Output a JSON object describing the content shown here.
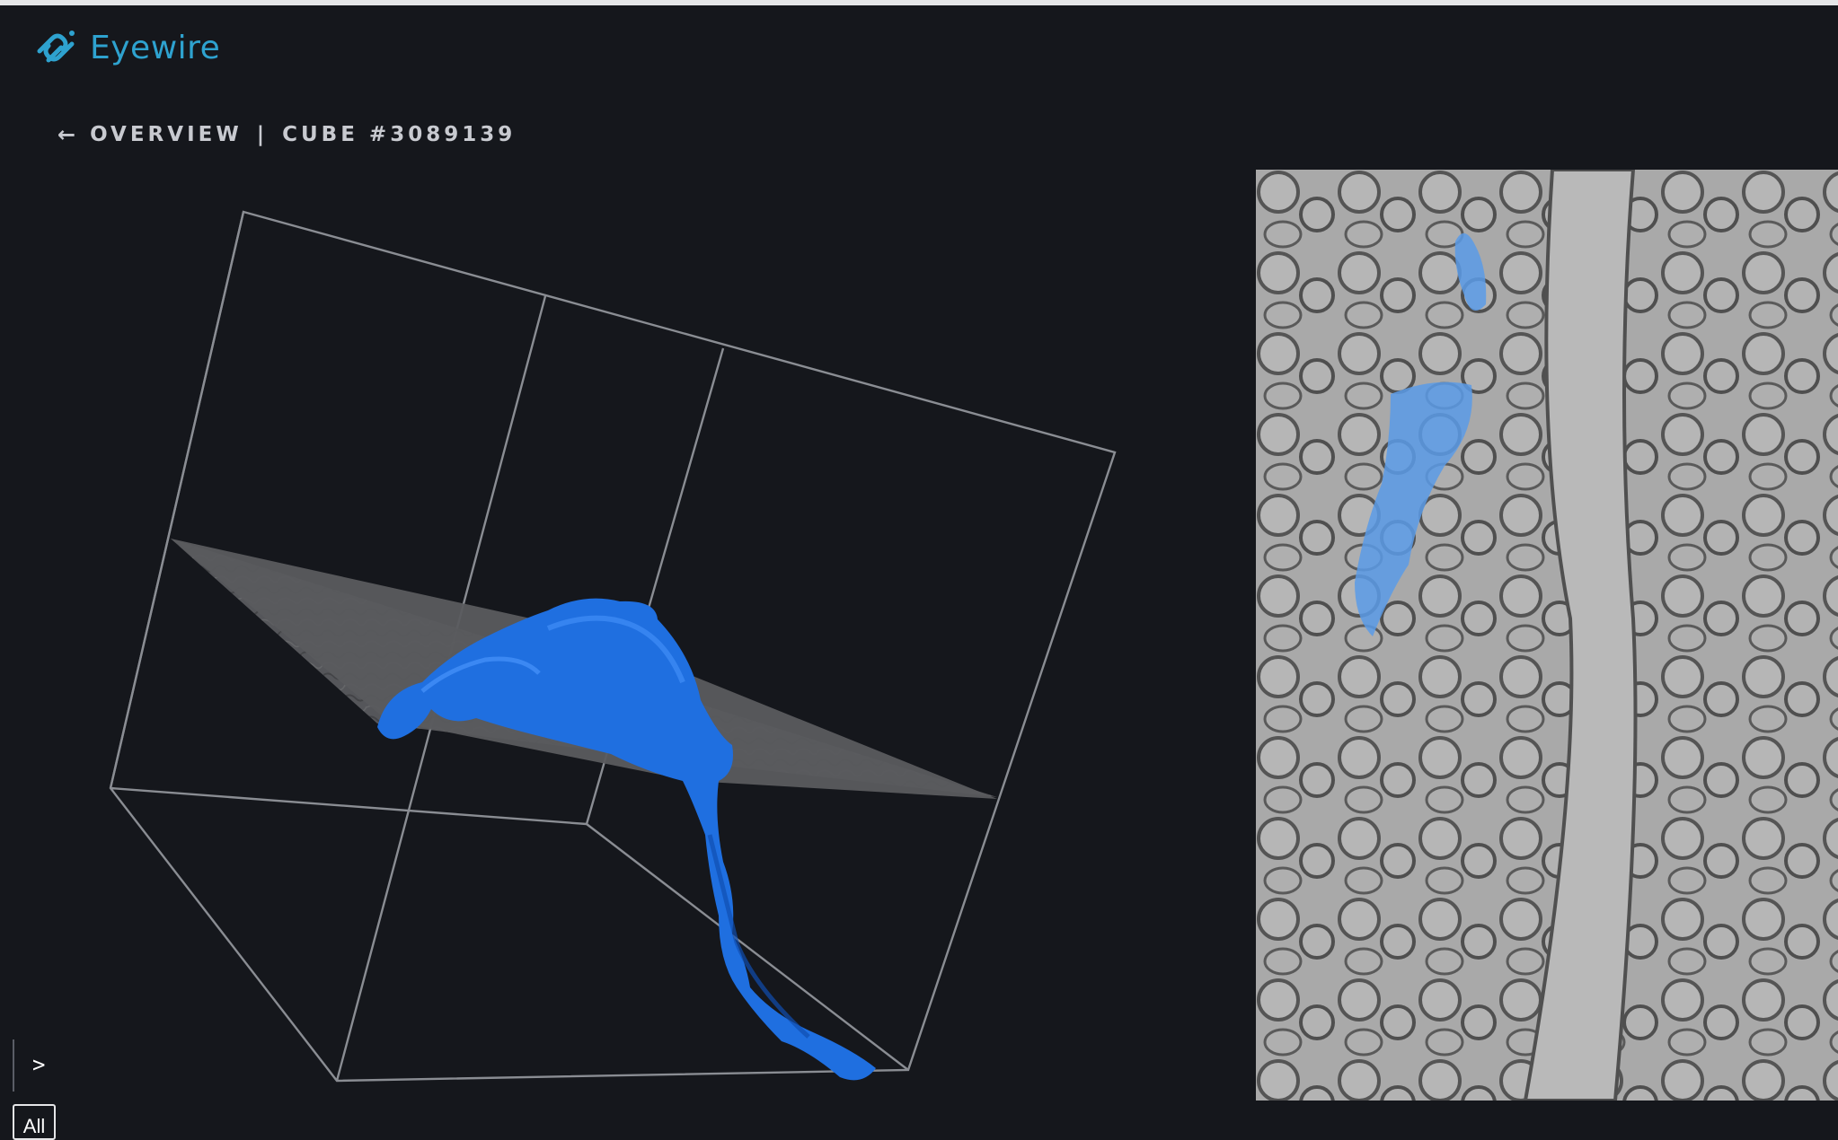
{
  "app": {
    "logo_text": "Eyewire",
    "brand_color": "#2ea2cf"
  },
  "breadcrumb": {
    "back_arrow": "←",
    "section": "OVERVIEW",
    "separator": "|",
    "cube": "CUBE #3089139"
  },
  "viewer": {
    "segment_color": "#1f6fe0",
    "wireframe_color": "#8a8d93"
  },
  "em_slice": {
    "overlay_color": "#5a9be8"
  },
  "console": {
    "prompt": ">"
  },
  "filter": {
    "label": "All"
  }
}
